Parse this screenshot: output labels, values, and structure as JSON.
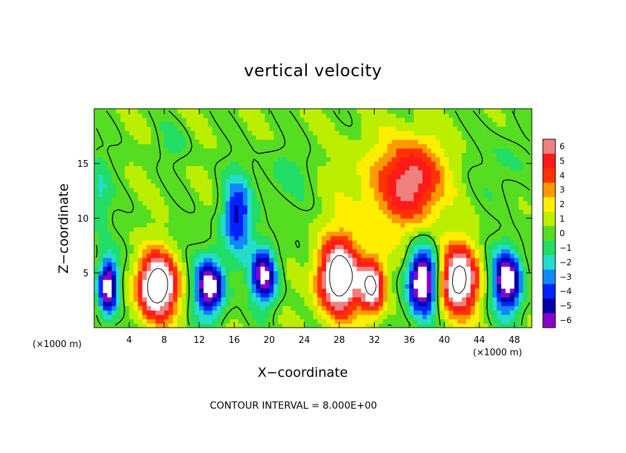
{
  "chart_data": {
    "type": "heatmap",
    "title": "vertical velocity",
    "xlabel": "X−coordinate",
    "ylabel": "Z−coordinate",
    "x_unit_left": "(×1000 m)",
    "x_unit_right": "(×1000 m)",
    "footer": "CONTOUR INTERVAL = 8.000E+00",
    "xlim": [
      0,
      50
    ],
    "ylim": [
      0,
      20
    ],
    "x_ticks": [
      {
        "value": 4,
        "label": "4"
      },
      {
        "value": 8,
        "label": "8"
      },
      {
        "value": 12,
        "label": "12"
      },
      {
        "value": 16,
        "label": "16"
      },
      {
        "value": 20,
        "label": "20"
      },
      {
        "value": 24,
        "label": "24"
      },
      {
        "value": 28,
        "label": "28"
      },
      {
        "value": 32,
        "label": "32"
      },
      {
        "value": 36,
        "label": "36"
      },
      {
        "value": 40,
        "label": "40"
      },
      {
        "value": 44,
        "label": "44"
      },
      {
        "value": 48,
        "label": "48"
      }
    ],
    "y_ticks": [
      {
        "value": 5,
        "label": "5"
      },
      {
        "value": 10,
        "label": "10"
      },
      {
        "value": 15,
        "label": "15"
      }
    ],
    "colorbar": {
      "levels": [
        {
          "value": 6,
          "label": "6",
          "color": "#f08080"
        },
        {
          "value": 5,
          "label": "5",
          "color": "#ff1a1a"
        },
        {
          "value": 4,
          "label": "4",
          "color": "#ff3300"
        },
        {
          "value": 3,
          "label": "3",
          "color": "#ff9900"
        },
        {
          "value": 2,
          "label": "2",
          "color": "#ffee00"
        },
        {
          "value": 1,
          "label": "1",
          "color": "#bbee00"
        },
        {
          "value": 0,
          "label": "0",
          "color": "#55dd22"
        },
        {
          "value": -1,
          "label": "−1",
          "color": "#22dd66"
        },
        {
          "value": -2,
          "label": "−2",
          "color": "#22ddcc"
        },
        {
          "value": -3,
          "label": "−3",
          "color": "#1188ff"
        },
        {
          "value": -4,
          "label": "−4",
          "color": "#0022ff"
        },
        {
          "value": -5,
          "label": "−5",
          "color": "#0000aa"
        },
        {
          "value": -6,
          "label": "−6",
          "color": "#8800cc"
        }
      ]
    },
    "background_value": 0.3,
    "cells": [
      {
        "x": 1.6,
        "z": 3.8,
        "rx": 1.3,
        "rz": 3.0,
        "w": -8
      },
      {
        "x": 7.2,
        "z": 3.8,
        "rx": 2.6,
        "rz": 3.3,
        "w": 10
      },
      {
        "x": 13.2,
        "z": 3.8,
        "rx": 1.9,
        "rz": 3.0,
        "w": -8
      },
      {
        "x": 16.3,
        "z": 10.2,
        "rx": 1.9,
        "rz": 4.0,
        "w": -5
      },
      {
        "x": 19.4,
        "z": 4.8,
        "rx": 1.7,
        "rz": 2.9,
        "w": -7
      },
      {
        "x": 28.0,
        "z": 4.6,
        "rx": 2.7,
        "rz": 3.8,
        "w": 10
      },
      {
        "x": 31.8,
        "z": 3.8,
        "rx": 1.6,
        "rz": 2.8,
        "w": 8
      },
      {
        "x": 36.6,
        "z": 13.5,
        "rx": 3.6,
        "rz": 4.2,
        "w": 5
      },
      {
        "x": 37.5,
        "z": 4.2,
        "rx": 1.9,
        "rz": 3.5,
        "w": -9
      },
      {
        "x": 41.6,
        "z": 4.3,
        "rx": 2.5,
        "rz": 3.5,
        "w": 9
      },
      {
        "x": 47.2,
        "z": 4.3,
        "rx": 1.9,
        "rz": 3.2,
        "w": -8
      },
      {
        "x": 33.0,
        "z": 12.5,
        "rx": 6.0,
        "rz": 5.5,
        "w": 2
      },
      {
        "x": 0.6,
        "z": 12.0,
        "rx": 1.4,
        "rz": 4.0,
        "w": -2
      },
      {
        "x": 9.0,
        "z": 17.0,
        "rx": 2.0,
        "rz": 2.0,
        "w": -1
      },
      {
        "x": 22.0,
        "z": 14.0,
        "rx": 4.0,
        "rz": 3.0,
        "w": -1
      },
      {
        "x": 47.0,
        "z": 15.0,
        "rx": 3.0,
        "rz": 4.0,
        "w": -1
      }
    ]
  }
}
